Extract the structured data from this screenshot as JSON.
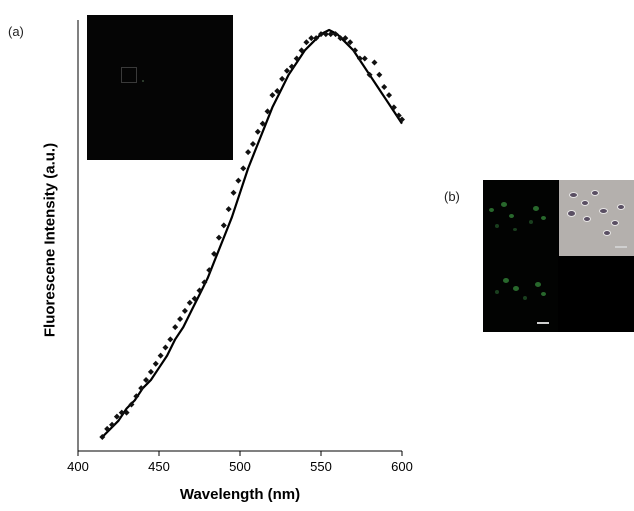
{
  "figure": {
    "panel_a_label": "(a)",
    "panel_b_label": "(b)"
  },
  "chart_data": {
    "type": "scatter",
    "xlabel": "Wavelength (nm)",
    "ylabel": "Fluorescene Intensity (a.u.)",
    "xlim": [
      400,
      600
    ],
    "xticks": [
      "400",
      "450",
      "500",
      "550",
      "600"
    ],
    "ylim": [
      0,
      1
    ],
    "yticks_labeled": false,
    "grid": false,
    "series": [
      {
        "style": "markers",
        "marker": "diamond",
        "color": "#111111",
        "x": [
          415,
          418,
          421,
          424,
          427,
          430,
          433,
          436,
          439,
          442,
          445,
          448,
          451,
          454,
          457,
          460,
          463,
          466,
          469,
          472,
          475,
          478,
          481,
          484,
          487,
          490,
          493,
          496,
          499,
          502,
          505,
          508,
          511,
          514,
          517,
          520,
          523,
          526,
          529,
          532,
          535,
          538,
          541,
          544,
          547,
          550,
          553,
          556,
          559,
          562,
          565,
          568,
          571,
          574,
          577,
          580,
          583,
          586,
          589,
          592,
          595,
          598,
          600
        ],
        "y": [
          0.0,
          0.02,
          0.03,
          0.05,
          0.06,
          0.06,
          0.08,
          0.1,
          0.12,
          0.14,
          0.16,
          0.18,
          0.2,
          0.22,
          0.24,
          0.27,
          0.29,
          0.31,
          0.33,
          0.34,
          0.36,
          0.38,
          0.41,
          0.45,
          0.49,
          0.52,
          0.56,
          0.6,
          0.63,
          0.66,
          0.7,
          0.72,
          0.75,
          0.77,
          0.8,
          0.84,
          0.85,
          0.88,
          0.9,
          0.91,
          0.93,
          0.95,
          0.97,
          0.98,
          0.98,
          0.99,
          0.99,
          0.99,
          0.99,
          0.98,
          0.98,
          0.97,
          0.95,
          0.93,
          0.93,
          0.89,
          0.92,
          0.89,
          0.86,
          0.84,
          0.81,
          0.79,
          0.78
        ]
      },
      {
        "style": "line",
        "color": "#000000",
        "x": [
          415,
          420,
          425,
          430,
          435,
          440,
          445,
          450,
          455,
          460,
          465,
          470,
          475,
          480,
          485,
          490,
          495,
          500,
          505,
          510,
          515,
          520,
          525,
          530,
          535,
          540,
          545,
          550,
          555,
          560,
          565,
          570,
          575,
          580,
          585,
          590,
          595,
          600
        ],
        "y": [
          0.0,
          0.02,
          0.04,
          0.07,
          0.09,
          0.12,
          0.14,
          0.17,
          0.2,
          0.24,
          0.27,
          0.31,
          0.35,
          0.39,
          0.44,
          0.49,
          0.54,
          0.6,
          0.66,
          0.71,
          0.76,
          0.81,
          0.85,
          0.89,
          0.92,
          0.95,
          0.97,
          0.99,
          1.0,
          0.99,
          0.97,
          0.95,
          0.92,
          0.89,
          0.86,
          0.83,
          0.8,
          0.77
        ]
      }
    ]
  }
}
